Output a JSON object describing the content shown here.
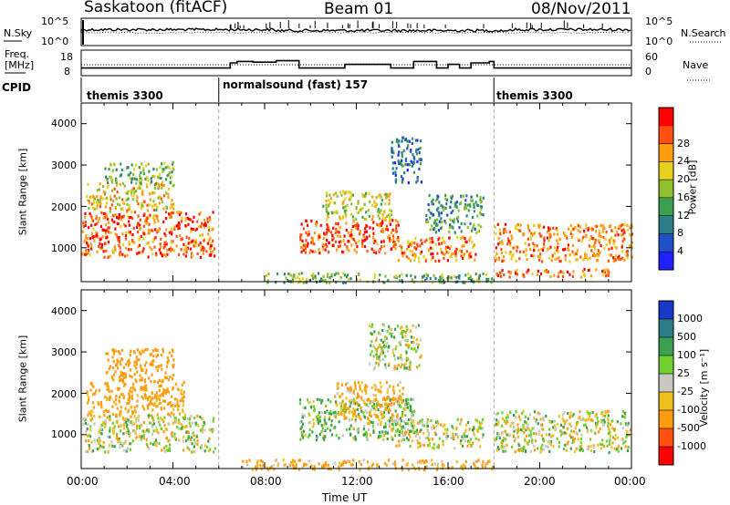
{
  "header": {
    "station": "Saskatoon (fitACF)",
    "beam": "Beam 01",
    "date": "08/Nov/2011"
  },
  "noise_panel": {
    "left_label": "N.Sky",
    "right_label": "N.Search",
    "left_ticks": [
      "10^5",
      "10^0"
    ],
    "right_ticks": [
      "10^5",
      "10^0"
    ]
  },
  "freq_panel": {
    "left_label_line1": "Freq.",
    "left_label_line2": "[MHz]",
    "right_label": "Nave",
    "left_ticks": [
      "18",
      "8"
    ],
    "right_ticks": [
      "60",
      "0"
    ],
    "freq_steps": [
      {
        "t": 0.0,
        "nave": 16
      },
      {
        "t": 6.5,
        "nave": 30
      },
      {
        "t": 6.8,
        "nave": 34
      },
      {
        "t": 7.5,
        "nave": 32
      },
      {
        "t": 8.5,
        "nave": 36
      },
      {
        "t": 9.5,
        "nave": 16
      },
      {
        "t": 11.0,
        "nave": 16
      },
      {
        "t": 11.5,
        "nave": 26
      },
      {
        "t": 13.5,
        "nave": 16
      },
      {
        "t": 14.5,
        "nave": 34
      },
      {
        "t": 15.5,
        "nave": 16
      },
      {
        "t": 16.0,
        "nave": 26
      },
      {
        "t": 16.5,
        "nave": 16
      },
      {
        "t": 17.0,
        "nave": 30
      },
      {
        "t": 17.8,
        "nave": 34
      },
      {
        "t": 18.0,
        "nave": 16
      },
      {
        "t": 24.0,
        "nave": 16
      }
    ]
  },
  "cpid": {
    "label": "CPID",
    "segments": [
      {
        "start": 0,
        "end": 6,
        "name": "themis 3300"
      },
      {
        "start": 6,
        "end": 18,
        "name": "normalsound (fast) 157"
      },
      {
        "start": 18,
        "end": 24,
        "name": "themis 3300"
      }
    ]
  },
  "chart_data": [
    {
      "type": "heatmap",
      "title": "Power",
      "ylabel": "Slant Range [km]",
      "xlabel": "Time UT",
      "x_ticks": [
        "00:00",
        "04:00",
        "08:00",
        "12:00",
        "16:00",
        "20:00",
        "00:00"
      ],
      "y_ticks": [
        "1000",
        "2000",
        "3000",
        "4000"
      ],
      "xlim": [
        0,
        24
      ],
      "ylim": [
        180,
        4500
      ],
      "colorbar": {
        "label": "Power [dB]",
        "ticks": [
          "4",
          "8",
          "12",
          "16",
          "20",
          "24",
          "28"
        ],
        "colors": [
          "#2020ff",
          "#2050c8",
          "#2a7f8a",
          "#3aa050",
          "#90c030",
          "#e8d020",
          "#ff9c10",
          "#ff5010",
          "#ff0000"
        ]
      },
      "regions": [
        {
          "t": [
            0.0,
            5.8
          ],
          "r": [
            800,
            1900
          ],
          "value": 26
        },
        {
          "t": [
            0.2,
            4.0
          ],
          "r": [
            1900,
            2600
          ],
          "value": 20
        },
        {
          "t": [
            1.0,
            4.0
          ],
          "r": [
            2600,
            3100
          ],
          "value": 14
        },
        {
          "t": [
            9.5,
            13.8
          ],
          "r": [
            900,
            1700
          ],
          "value": 27
        },
        {
          "t": [
            10.5,
            13.5
          ],
          "r": [
            1700,
            2400
          ],
          "value": 18
        },
        {
          "t": [
            13.8,
            17.2
          ],
          "r": [
            700,
            1300
          ],
          "value": 25
        },
        {
          "t": [
            15.0,
            17.5
          ],
          "r": [
            1400,
            2300
          ],
          "value": 12
        },
        {
          "t": [
            18.0,
            24.0
          ],
          "r": [
            700,
            1600
          ],
          "value": 24
        },
        {
          "t": [
            13.5,
            14.8
          ],
          "r": [
            2600,
            3700
          ],
          "value": 8
        },
        {
          "t": [
            8.0,
            18.0
          ],
          "r": [
            180,
            420
          ],
          "value": 14
        },
        {
          "t": [
            18.0,
            23.0
          ],
          "r": [
            320,
            520
          ],
          "value": 26
        }
      ]
    },
    {
      "type": "heatmap",
      "title": "Velocity",
      "ylabel": "Slant Range [km]",
      "xlabel": "Time UT",
      "x_ticks": [
        "00:00",
        "04:00",
        "08:00",
        "12:00",
        "16:00",
        "20:00",
        "00:00"
      ],
      "y_ticks": [
        "1000",
        "2000",
        "3000",
        "4000"
      ],
      "xlim": [
        0,
        24
      ],
      "ylim": [
        180,
        4500
      ],
      "colorbar": {
        "label": "Velocity [m s⁻¹]",
        "ticks": [
          "1000",
          "500",
          "100",
          "25",
          "-25",
          "-100",
          "-500",
          "-1000"
        ],
        "colors": [
          "#1838c8",
          "#2a7f8a",
          "#3aa050",
          "#70d030",
          "#c8c8c0",
          "#f0c020",
          "#ff9c10",
          "#ff5010",
          "#ff0000"
        ]
      },
      "regions": [
        {
          "t": [
            0.0,
            5.8
          ],
          "r": [
            600,
            1500
          ],
          "value": 0
        },
        {
          "t": [
            0.2,
            4.5
          ],
          "r": [
            1500,
            2300
          ],
          "value": -200
        },
        {
          "t": [
            1.0,
            4.0
          ],
          "r": [
            2300,
            3100
          ],
          "value": -300
        },
        {
          "t": [
            9.5,
            14.5
          ],
          "r": [
            900,
            1900
          ],
          "value": 80
        },
        {
          "t": [
            11.0,
            14.0
          ],
          "r": [
            1400,
            2300
          ],
          "value": -150
        },
        {
          "t": [
            13.5,
            17.5
          ],
          "r": [
            700,
            1400
          ],
          "value": 0
        },
        {
          "t": [
            18.0,
            24.0
          ],
          "r": [
            600,
            1600
          ],
          "value": 0
        },
        {
          "t": [
            12.5,
            14.8
          ],
          "r": [
            2600,
            3700
          ],
          "value": 0
        },
        {
          "t": [
            7.0,
            18.0
          ],
          "r": [
            180,
            420
          ],
          "value": -150
        }
      ]
    }
  ]
}
